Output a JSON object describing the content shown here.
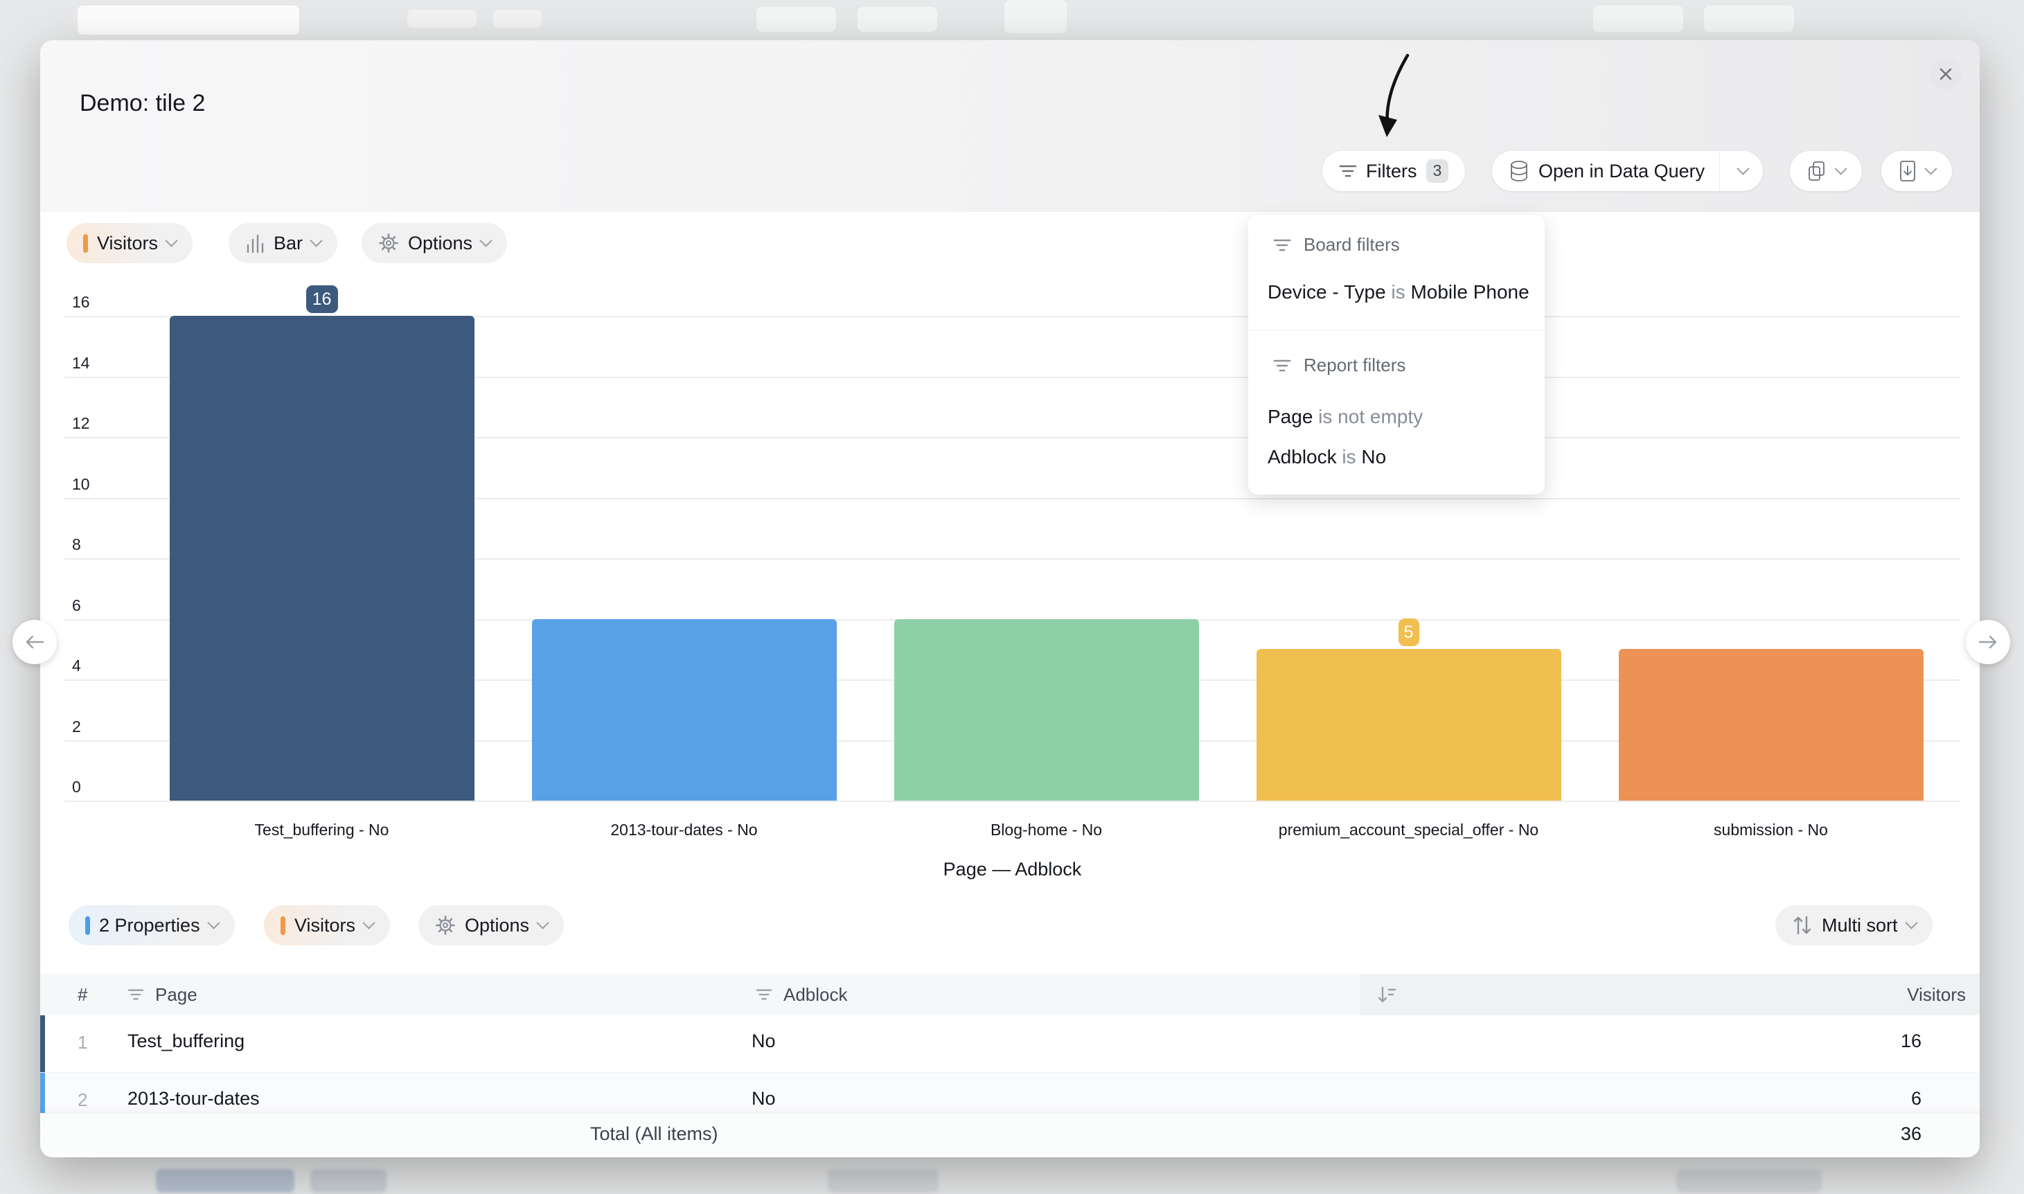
{
  "modal": {
    "title": "Demo: tile 2"
  },
  "toolbar": {
    "filters_label": "Filters",
    "filters_count": "3",
    "open_in_data_query": "Open in Data Query"
  },
  "filter_panel": {
    "board": {
      "title": "Board filters",
      "rules": [
        {
          "field": "Device - Type",
          "op": " is ",
          "value": "Mobile Phone"
        }
      ]
    },
    "report": {
      "title": "Report filters",
      "rules": [
        {
          "field": "Page",
          "op": " is not empty",
          "value": ""
        },
        {
          "field": "Adblock",
          "op": " is ",
          "value": "No"
        }
      ]
    }
  },
  "chart_controls": {
    "metric": "Visitors",
    "chart_type": "Bar",
    "options": "Options"
  },
  "chart_data": {
    "type": "bar",
    "categories": [
      "Test_buffering - No",
      "2013-tour-dates - No",
      "Blog-home - No",
      "premium_account_special_offer - No",
      "submission - No"
    ],
    "values": [
      16,
      6,
      6,
      5,
      5
    ],
    "bar_colors": [
      "#3d5a7d",
      "#58a1e6",
      "#8ed0a6",
      "#f1bf50",
      "#eb9254"
    ],
    "badges": [
      {
        "index": 0,
        "value": "16"
      },
      {
        "index": 3,
        "value": "5"
      }
    ],
    "title": "",
    "xlabel": "Page — Adblock",
    "ylabel": "",
    "y_ticks": [
      16,
      14,
      12,
      10,
      8,
      6,
      4,
      2,
      0
    ],
    "ylim": [
      0,
      16
    ],
    "grid": true,
    "legend": false
  },
  "table_controls": {
    "properties": "2 Properties",
    "metric": "Visitors",
    "options": "Options",
    "multi_sort": "Multi sort"
  },
  "table": {
    "columns": {
      "index": "#",
      "page": "Page",
      "adblock": "Adblock",
      "visitors": "Visitors"
    },
    "rows": [
      {
        "index": "1",
        "page": "Test_buffering",
        "adblock": "No",
        "visitors": "16",
        "color": "#3d5a7d"
      },
      {
        "index": "2",
        "page": "2013-tour-dates",
        "adblock": "No",
        "visitors": "6",
        "color": "#58a1e6"
      }
    ],
    "total_label": "Total (All items)",
    "total_value": "36"
  },
  "accents": {
    "orange": "#ee9a49",
    "blue": "#4d9ce8"
  }
}
